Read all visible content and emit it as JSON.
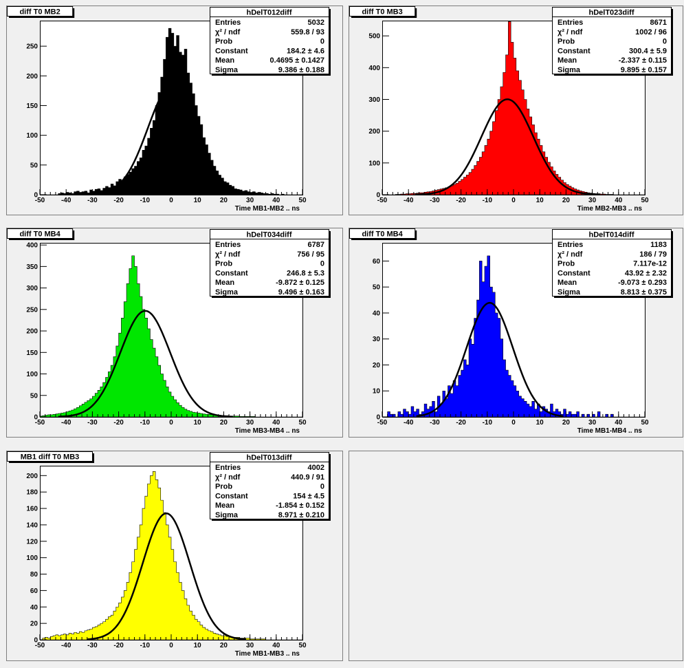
{
  "pads": [
    {
      "pad_title": "diff T0 MB2",
      "stats": {
        "name": "hDelT012diff",
        "rows": [
          {
            "label": "Entries",
            "value": "5032"
          },
          {
            "label": "χ² / ndf",
            "value": "559.8 / 93"
          },
          {
            "label": "Prob",
            "value": "0"
          },
          {
            "label": "Constant",
            "value": "184.2 ± 4.6"
          },
          {
            "label": "Mean",
            "value": "0.4695 ± 0.1427"
          },
          {
            "label": "Sigma",
            "value": "9.386 ± 0.188"
          }
        ]
      },
      "chart_data": {
        "type": "bar",
        "title": "diff T0 MB2",
        "xlabel": "Time MB1-MB2  ..  ns",
        "ylabel": "",
        "xlim": [
          -50,
          50
        ],
        "ylim": [
          0,
          293
        ],
        "xticks": [
          -50,
          -40,
          -30,
          -20,
          -10,
          0,
          10,
          20,
          30,
          40,
          50
        ],
        "yticks": [
          0,
          50,
          100,
          150,
          200,
          250
        ],
        "fill_color": "#000000",
        "bin_edges_start": -50,
        "bin_width": 1,
        "values": [
          0,
          0,
          0,
          0,
          0,
          0,
          0,
          2,
          3,
          2,
          4,
          3,
          2,
          5,
          6,
          4,
          5,
          6,
          3,
          8,
          6,
          9,
          10,
          7,
          11,
          14,
          12,
          18,
          15,
          22,
          26,
          24,
          30,
          34,
          38,
          44,
          48,
          56,
          62,
          75,
          82,
          95,
          112,
          125,
          150,
          172,
          198,
          228,
          265,
          280,
          272,
          250,
          268,
          240,
          235,
          245,
          205,
          188,
          170,
          150,
          132,
          118,
          96,
          84,
          70,
          58,
          48,
          40,
          33,
          28,
          22,
          20,
          16,
          14,
          10,
          9,
          8,
          6,
          7,
          5,
          4,
          5,
          3,
          4,
          3,
          2,
          2,
          1,
          2,
          1,
          1,
          0,
          1,
          0,
          0,
          0,
          0,
          0,
          0,
          0
        ],
        "fit": {
          "constant": 184.2,
          "mean": 0.4695,
          "sigma": 9.386
        }
      }
    },
    {
      "pad_title": "diff T0 MB3",
      "stats": {
        "name": "hDelT023diff",
        "rows": [
          {
            "label": "Entries",
            "value": "8671"
          },
          {
            "label": "χ² / ndf",
            "value": "1002 / 96"
          },
          {
            "label": "Prob",
            "value": "0"
          },
          {
            "label": "Constant",
            "value": "300.4 ± 5.9"
          },
          {
            "label": "Mean",
            "value": "-2.337 ± 0.115"
          },
          {
            "label": "Sigma",
            "value": "9.895 ± 0.157"
          }
        ]
      },
      "chart_data": {
        "type": "bar",
        "title": "diff T0 MB3",
        "xlabel": "Time MB2-MB3  ..  ns",
        "ylabel": "",
        "xlim": [
          -50,
          50
        ],
        "ylim": [
          0,
          548
        ],
        "xticks": [
          -50,
          -40,
          -30,
          -20,
          -10,
          0,
          10,
          20,
          30,
          40,
          50
        ],
        "yticks": [
          0,
          100,
          200,
          300,
          400,
          500
        ],
        "fill_color": "#ff0000",
        "bin_edges_start": -50,
        "bin_width": 1,
        "values": [
          0,
          0,
          0,
          0,
          0,
          1,
          1,
          2,
          2,
          3,
          3,
          4,
          4,
          5,
          6,
          6,
          8,
          9,
          10,
          12,
          14,
          16,
          18,
          20,
          22,
          25,
          28,
          32,
          36,
          42,
          48,
          55,
          62,
          70,
          80,
          92,
          105,
          118,
          135,
          155,
          175,
          200,
          230,
          265,
          300,
          340,
          385,
          440,
          545,
          480,
          430,
          390,
          360,
          330,
          300,
          270,
          245,
          220,
          195,
          175,
          155,
          135,
          118,
          102,
          88,
          75,
          64,
          55,
          46,
          38,
          32,
          27,
          22,
          18,
          15,
          12,
          10,
          8,
          6,
          5,
          4,
          3,
          3,
          2,
          2,
          1,
          1,
          1,
          0,
          0,
          0,
          0,
          0,
          0,
          0,
          0,
          0,
          0,
          0,
          0
        ],
        "fit": {
          "constant": 300.4,
          "mean": -2.337,
          "sigma": 9.895
        }
      }
    },
    {
      "pad_title": "diff T0 MB4",
      "stats": {
        "name": "hDelT034diff",
        "rows": [
          {
            "label": "Entries",
            "value": "6787"
          },
          {
            "label": "χ² / ndf",
            "value": "756 / 95"
          },
          {
            "label": "Prob",
            "value": "0"
          },
          {
            "label": "Constant",
            "value": "246.8 ± 5.3"
          },
          {
            "label": "Mean",
            "value": "-9.872 ± 0.125"
          },
          {
            "label": "Sigma",
            "value": "9.496 ± 0.163"
          }
        ]
      },
      "chart_data": {
        "type": "bar",
        "title": "diff T0 MB4",
        "xlabel": "Time MB3-MB4  ..  ns",
        "ylabel": "",
        "xlim": [
          -50,
          50
        ],
        "ylim": [
          0,
          405
        ],
        "xticks": [
          -50,
          -40,
          -30,
          -20,
          -10,
          0,
          10,
          20,
          30,
          40,
          50
        ],
        "yticks": [
          0,
          50,
          100,
          150,
          200,
          250,
          300,
          350,
          400
        ],
        "fill_color": "#00e600",
        "bin_edges_start": -50,
        "bin_width": 1,
        "values": [
          2,
          3,
          4,
          5,
          5,
          6,
          7,
          8,
          9,
          10,
          12,
          14,
          16,
          19,
          22,
          26,
          30,
          34,
          38,
          42,
          48,
          55,
          62,
          70,
          80,
          92,
          105,
          120,
          140,
          165,
          195,
          230,
          268,
          310,
          345,
          375,
          350,
          310,
          280,
          250,
          230,
          205,
          180,
          160,
          140,
          120,
          100,
          85,
          70,
          58,
          48,
          40,
          33,
          27,
          22,
          18,
          15,
          13,
          11,
          10,
          9,
          8,
          7,
          6,
          6,
          5,
          5,
          4,
          4,
          3,
          3,
          3,
          2,
          2,
          2,
          2,
          1,
          1,
          1,
          1,
          1,
          1,
          0,
          0,
          0,
          0,
          0,
          0,
          0,
          0,
          0,
          0,
          0,
          0,
          0,
          0,
          0,
          0,
          0,
          0
        ],
        "fit": {
          "constant": 246.8,
          "mean": -9.872,
          "sigma": 9.496
        }
      }
    },
    {
      "pad_title": "diff T0 MB4",
      "stats": {
        "name": "hDelT014diff",
        "rows": [
          {
            "label": "Entries",
            "value": "1183"
          },
          {
            "label": "χ² / ndf",
            "value": "186 / 79"
          },
          {
            "label": "Prob",
            "value": "7.117e-12"
          },
          {
            "label": "Constant",
            "value": "43.92 ± 2.32"
          },
          {
            "label": "Mean",
            "value": "-9.073 ± 0.293"
          },
          {
            "label": "Sigma",
            "value": "8.813 ± 0.375"
          }
        ]
      },
      "chart_data": {
        "type": "bar",
        "title": "diff T0 MB4",
        "xlabel": "Time MB1-MB4  ..  ns",
        "ylabel": "",
        "xlim": [
          -50,
          50
        ],
        "ylim": [
          0,
          67
        ],
        "xticks": [
          -50,
          -40,
          -30,
          -20,
          -10,
          0,
          10,
          20,
          30,
          40,
          50
        ],
        "yticks": [
          0,
          10,
          20,
          30,
          40,
          50,
          60
        ],
        "fill_color": "#0000ff",
        "bin_edges_start": -50,
        "bin_width": 1,
        "values": [
          0,
          0,
          2,
          1,
          1,
          0,
          2,
          1,
          3,
          2,
          1,
          4,
          2,
          3,
          1,
          2,
          5,
          3,
          4,
          6,
          2,
          8,
          5,
          10,
          7,
          12,
          9,
          14,
          12,
          16,
          18,
          22,
          20,
          30,
          28,
          38,
          45,
          60,
          52,
          58,
          62,
          50,
          48,
          40,
          38,
          30,
          22,
          18,
          16,
          14,
          12,
          10,
          8,
          7,
          6,
          5,
          4,
          6,
          3,
          5,
          2,
          4,
          3,
          2,
          5,
          2,
          3,
          2,
          1,
          3,
          1,
          2,
          1,
          1,
          2,
          0,
          1,
          0,
          1,
          0,
          1,
          0,
          2,
          0,
          0,
          1,
          0,
          1,
          0,
          0,
          0,
          0,
          0,
          0,
          0,
          0,
          0,
          0,
          0,
          0
        ],
        "fit": {
          "constant": 43.92,
          "mean": -9.073,
          "sigma": 8.813
        }
      }
    },
    {
      "pad_title": "MB1 diff T0 MB3",
      "stats": {
        "name": "hDelT013diff",
        "rows": [
          {
            "label": "Entries",
            "value": "4002"
          },
          {
            "label": "χ² / ndf",
            "value": "440.9 / 91"
          },
          {
            "label": "Prob",
            "value": "0"
          },
          {
            "label": "Constant",
            "value": "154 ± 4.5"
          },
          {
            "label": "Mean",
            "value": "-1.854 ± 0.152"
          },
          {
            "label": "Sigma",
            "value": "8.971 ± 0.210"
          }
        ]
      },
      "chart_data": {
        "type": "bar",
        "title": "MB1 diff T0 MB3",
        "xlabel": "Time MB1-MB3  ..  ns",
        "ylabel": "",
        "xlim": [
          -50,
          50
        ],
        "ylim": [
          0,
          212
        ],
        "xticks": [
          -50,
          -40,
          -30,
          -20,
          -10,
          0,
          10,
          20,
          30,
          40,
          50
        ],
        "yticks": [
          0,
          20,
          40,
          60,
          80,
          100,
          120,
          140,
          160,
          180,
          200
        ],
        "fill_color": "#ffff00",
        "bin_edges_start": -50,
        "bin_width": 1,
        "values": [
          0,
          2,
          3,
          2,
          4,
          5,
          6,
          5,
          6,
          7,
          6,
          8,
          7,
          9,
          8,
          10,
          9,
          11,
          12,
          13,
          15,
          16,
          18,
          20,
          22,
          25,
          28,
          30,
          35,
          40,
          45,
          52,
          60,
          70,
          82,
          95,
          110,
          125,
          140,
          160,
          175,
          190,
          200,
          205,
          195,
          185,
          170,
          155,
          140,
          125,
          110,
          95,
          82,
          70,
          60,
          50,
          42,
          35,
          30,
          25,
          22,
          18,
          15,
          13,
          11,
          10,
          8,
          7,
          6,
          5,
          5,
          4,
          4,
          3,
          3,
          3,
          2,
          2,
          2,
          2,
          1,
          1,
          1,
          1,
          1,
          1,
          0,
          0,
          0,
          0,
          0,
          0,
          0,
          0,
          0,
          0,
          0,
          0,
          0,
          0
        ],
        "fit": {
          "constant": 154.0,
          "mean": -1.854,
          "sigma": 8.971
        }
      }
    }
  ]
}
